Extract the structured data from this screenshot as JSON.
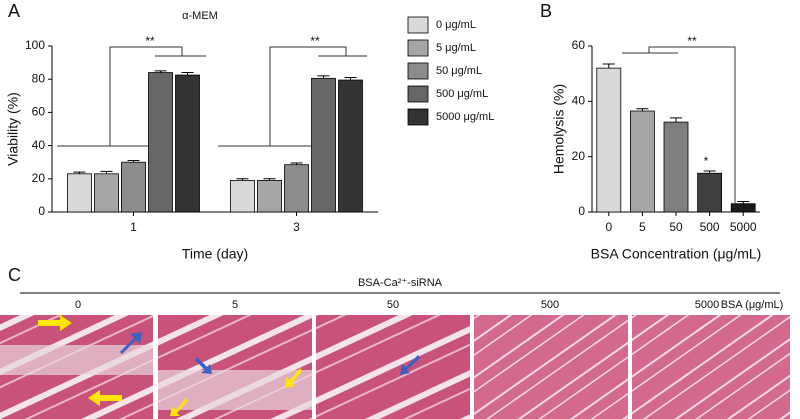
{
  "chart_data": [
    {
      "type": "bar",
      "panel": "A",
      "title": "α-MEM",
      "x_label": "Time (day)",
      "y_label": "Viability (%)",
      "categories": [
        "1",
        "3"
      ],
      "series": [
        {
          "name": "0 μg/mL",
          "color": "#d9d9d9",
          "values": [
            23,
            19
          ],
          "errors": [
            1,
            1
          ]
        },
        {
          "name": "5 μg/mL",
          "color": "#a6a6a6",
          "values": [
            23,
            19
          ],
          "errors": [
            1.5,
            1
          ]
        },
        {
          "name": "50 μg/mL",
          "color": "#8c8c8c",
          "values": [
            30,
            28.5
          ],
          "errors": [
            1,
            1
          ]
        },
        {
          "name": "500 μg/mL",
          "color": "#666666",
          "values": [
            84,
            80.5
          ],
          "errors": [
            1,
            1.5
          ]
        },
        {
          "name": "5000 μg/mL",
          "color": "#333333",
          "values": [
            82.5,
            79.5
          ],
          "errors": [
            1.5,
            1.5
          ]
        }
      ],
      "ylim": [
        0,
        100
      ],
      "yticks": [
        0,
        20,
        40,
        60,
        80,
        100
      ],
      "annotations": [
        "**",
        "**"
      ]
    },
    {
      "type": "bar",
      "panel": "B",
      "x_label": "BSA Concentration (μg/mL)",
      "y_label": "Hemolysis (%)",
      "categories": [
        "0",
        "5",
        "50",
        "500",
        "5000"
      ],
      "values": [
        52,
        36.5,
        32.5,
        14,
        3
      ],
      "errors": [
        1.5,
        0.8,
        1.5,
        0.8,
        0.8
      ],
      "colors": [
        "#d9d9d9",
        "#a6a6a6",
        "#7f7f7f",
        "#404040",
        "#1a1a1a"
      ],
      "ylim": [
        0,
        60
      ],
      "yticks": [
        0,
        20,
        40,
        60
      ],
      "annotations": [
        "**",
        "*"
      ]
    }
  ],
  "panel_c": {
    "panel": "C",
    "header": "BSA-Ca²⁺-siRNA",
    "labels": [
      "0",
      "5",
      "50",
      "500",
      "5000"
    ],
    "unit_label": "BSA (μg/mL)"
  }
}
